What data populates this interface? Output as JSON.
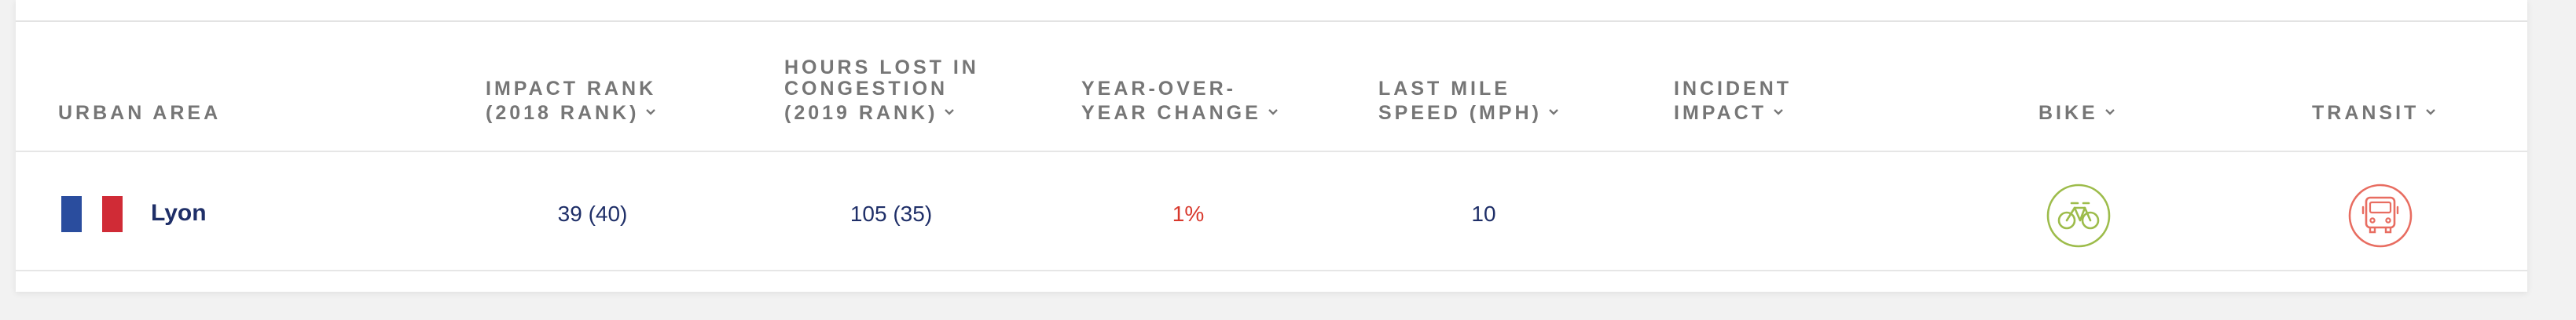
{
  "table": {
    "headers": {
      "urban_area": "URBAN AREA",
      "impact_rank": "IMPACT RANK\n(2018 RANK)",
      "hours_lost": "HOURS LOST IN\nCONGESTION\n(2019 RANK)",
      "year_change": "YEAR-OVER-\nYEAR CHANGE",
      "last_mile_speed": "LAST MILE\nSPEED (MPH)",
      "incident_impact": "INCIDENT\nIMPACT",
      "bike": "BIKE",
      "transit": "TRANSIT"
    },
    "row": {
      "city": "Lyon",
      "country_flag": "france-flag",
      "impact_rank": "39 (40)",
      "hours_lost": "105 (35)",
      "year_change": "1%",
      "last_mile_speed": "10",
      "bike_icon": "bike-icon",
      "transit_icon": "bus-icon"
    }
  },
  "icons": {
    "sort": "chevron-down-icon"
  },
  "colors": {
    "header_text": "#767676",
    "link_text": "#1f2f68",
    "change_text": "#d8382c",
    "bike_icon": "#9dbc4b",
    "transit_icon": "#e86d61",
    "flag_blue": "#2a4d9e",
    "flag_white": "#ffffff",
    "flag_red": "#d02b36"
  }
}
